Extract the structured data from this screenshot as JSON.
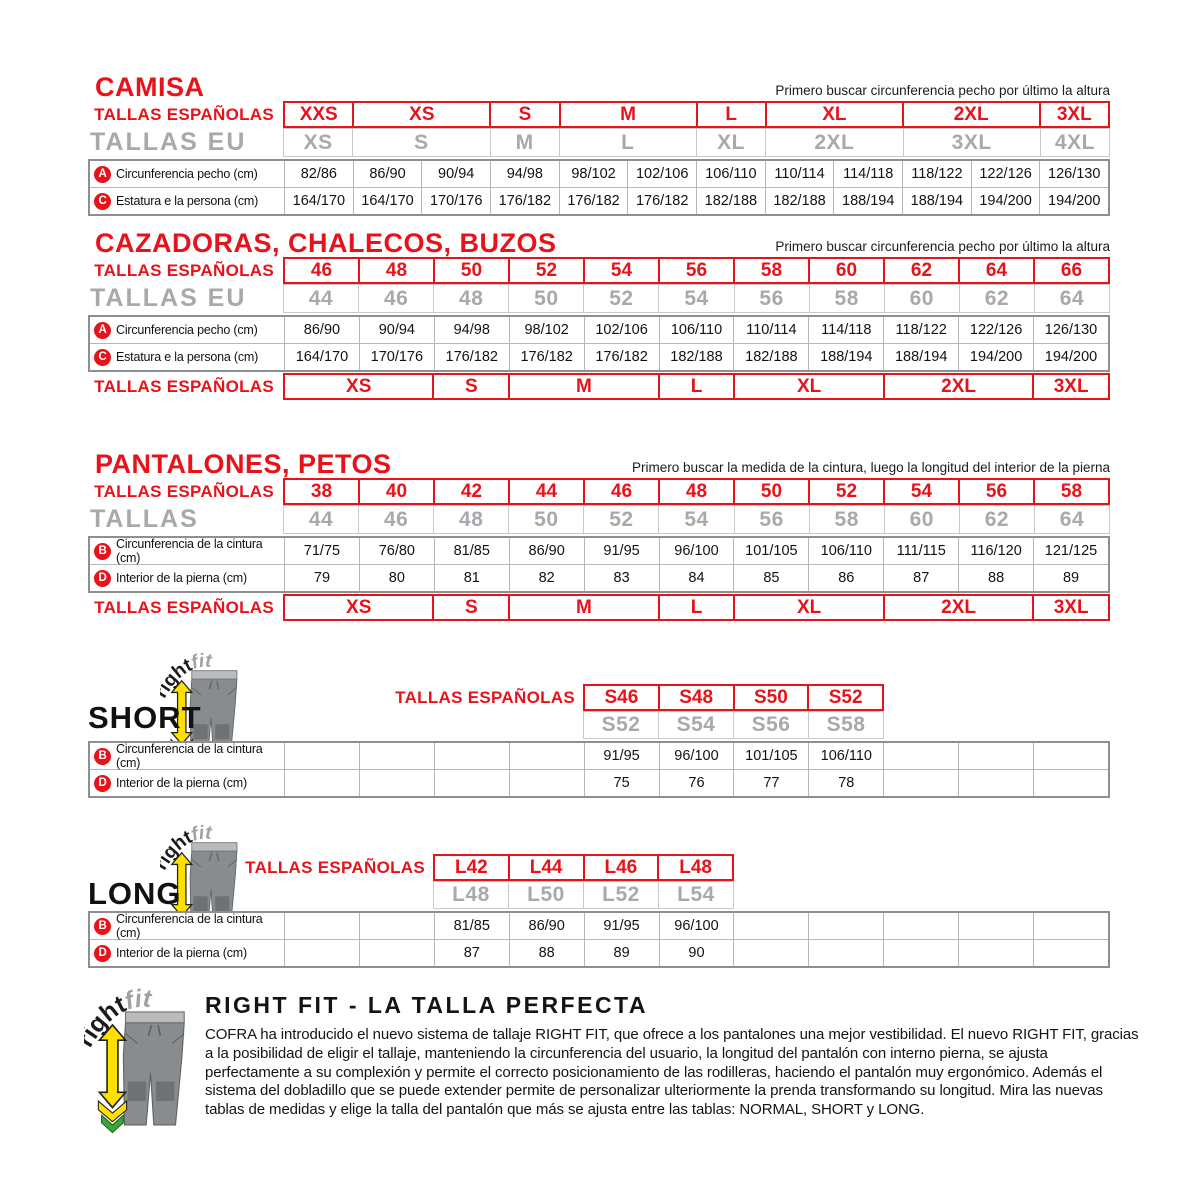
{
  "colors": {
    "red": "#e8121a",
    "gray_text": "#a7a9ac",
    "yellow_arrow": "#ffe000",
    "green_arrow": "#3da639",
    "pants_gray": "#898c8e"
  },
  "camisa": {
    "title": "CAMISA",
    "note": "Primero buscar circunferencia pecho por último la altura",
    "es_label": "TALLAS ESPAÑOLAS",
    "eu_label": "TALLAS EU",
    "es_sizes": [
      {
        "label": "XXS",
        "span": 1
      },
      {
        "label": "XS",
        "span": 2
      },
      {
        "label": "S",
        "span": 1
      },
      {
        "label": "M",
        "span": 2
      },
      {
        "label": "L",
        "span": 1
      },
      {
        "label": "XL",
        "span": 2
      },
      {
        "label": "2XL",
        "span": 2
      },
      {
        "label": "3XL",
        "span": 1
      }
    ],
    "eu_sizes": [
      {
        "label": "XS",
        "span": 1
      },
      {
        "label": "S",
        "span": 2
      },
      {
        "label": "M",
        "span": 1
      },
      {
        "label": "L",
        "span": 2
      },
      {
        "label": "XL",
        "span": 1
      },
      {
        "label": "2XL",
        "span": 2
      },
      {
        "label": "3XL",
        "span": 2
      },
      {
        "label": "4XL",
        "span": 1
      }
    ],
    "rows": [
      {
        "letter": "A",
        "label": "Circunferencia pecho (cm)",
        "values": [
          "82/86",
          "86/90",
          "90/94",
          "94/98",
          "98/102",
          "102/106",
          "106/110",
          "110/114",
          "114/118",
          "118/122",
          "122/126",
          "126/130"
        ]
      },
      {
        "letter": "C",
        "label": "Estatura e la persona (cm)",
        "values": [
          "164/170",
          "164/170",
          "170/176",
          "176/182",
          "176/182",
          "176/182",
          "182/188",
          "182/188",
          "188/194",
          "188/194",
          "194/200",
          "194/200"
        ]
      }
    ]
  },
  "cazadoras": {
    "title": "CAZADORAS, CHALECOS, BUZOS",
    "note": "Primero buscar circunferencia pecho por último la altura",
    "es_label": "TALLAS ESPAÑOLAS",
    "eu_label": "TALLAS EU",
    "es_sizes": [
      "46",
      "48",
      "50",
      "52",
      "54",
      "56",
      "58",
      "60",
      "62",
      "64",
      "66"
    ],
    "eu_sizes": [
      "44",
      "46",
      "48",
      "50",
      "52",
      "54",
      "56",
      "58",
      "60",
      "62",
      "64"
    ],
    "rows": [
      {
        "letter": "A",
        "label": "Circunferencia pecho (cm)",
        "values": [
          "86/90",
          "90/94",
          "94/98",
          "98/102",
          "102/106",
          "106/110",
          "110/114",
          "114/118",
          "118/122",
          "122/126",
          "126/130"
        ]
      },
      {
        "letter": "C",
        "label": "Estatura e la persona (cm)",
        "values": [
          "164/170",
          "170/176",
          "176/182",
          "176/182",
          "176/182",
          "182/188",
          "182/188",
          "188/194",
          "188/194",
          "194/200",
          "194/200"
        ]
      }
    ],
    "bottom_label": "TALLAS ESPAÑOLAS",
    "bottom_sizes": [
      {
        "label": "XS",
        "span": 2
      },
      {
        "label": "S",
        "span": 1
      },
      {
        "label": "M",
        "span": 2
      },
      {
        "label": "L",
        "span": 1
      },
      {
        "label": "XL",
        "span": 2
      },
      {
        "label": "2XL",
        "span": 2
      },
      {
        "label": "3XL",
        "span": 1
      }
    ]
  },
  "pantalones": {
    "title": "PANTALONES, PETOS",
    "note": "Primero buscar la medida de la cintura, luego la longitud del interior de la pierna",
    "es_label": "TALLAS ESPAÑOLAS",
    "eu_label": "TALLAS",
    "es_sizes": [
      "38",
      "40",
      "42",
      "44",
      "46",
      "48",
      "50",
      "52",
      "54",
      "56",
      "58"
    ],
    "eu_sizes": [
      "44",
      "46",
      "48",
      "50",
      "52",
      "54",
      "56",
      "58",
      "60",
      "62",
      "64"
    ],
    "rows": [
      {
        "letter": "B",
        "label": "Circunferencia de la cintura (cm)",
        "values": [
          "71/75",
          "76/80",
          "81/85",
          "86/90",
          "91/95",
          "96/100",
          "101/105",
          "106/110",
          "111/115",
          "116/120",
          "121/125"
        ]
      },
      {
        "letter": "D",
        "label": "Interior de la pierna (cm)",
        "values": [
          "79",
          "80",
          "81",
          "82",
          "83",
          "84",
          "85",
          "86",
          "87",
          "88",
          "89"
        ]
      }
    ],
    "bottom_label": "TALLAS ESPAÑOLAS",
    "bottom_sizes": [
      {
        "label": "XS",
        "span": 2
      },
      {
        "label": "S",
        "span": 1
      },
      {
        "label": "M",
        "span": 2
      },
      {
        "label": "L",
        "span": 1
      },
      {
        "label": "XL",
        "span": 2
      },
      {
        "label": "2XL",
        "span": 2
      },
      {
        "label": "3XL",
        "span": 1
      }
    ]
  },
  "short": {
    "name": "SHORT",
    "es_label": "TALLAS ESPAÑOLAS",
    "es_sizes": [
      "S46",
      "S48",
      "S50",
      "S52"
    ],
    "eu_sizes": [
      "S52",
      "S54",
      "S56",
      "S58"
    ],
    "rows": [
      {
        "letter": "B",
        "label": "Circunferencia de la cintura (cm)",
        "values": [
          "",
          "",
          "",
          "",
          "91/95",
          "96/100",
          "101/105",
          "106/110",
          "",
          "",
          ""
        ]
      },
      {
        "letter": "D",
        "label": "Interior de la pierna (cm)",
        "values": [
          "",
          "",
          "",
          "",
          "75",
          "76",
          "77",
          "78",
          "",
          "",
          ""
        ]
      }
    ]
  },
  "long": {
    "name": "LONG",
    "es_label": "TALLAS ESPAÑOLAS",
    "es_sizes": [
      "L42",
      "L44",
      "L46",
      "L48"
    ],
    "eu_sizes": [
      "L48",
      "L50",
      "L52",
      "L54"
    ],
    "rows": [
      {
        "letter": "B",
        "label": "Circunferencia de la cintura (cm)",
        "values": [
          "",
          "",
          "81/85",
          "86/90",
          "91/95",
          "96/100",
          "",
          "",
          "",
          "",
          ""
        ]
      },
      {
        "letter": "D",
        "label": "Interior de la pierna (cm)",
        "values": [
          "",
          "",
          "87",
          "88",
          "89",
          "90",
          "",
          "",
          "",
          "",
          ""
        ]
      }
    ]
  },
  "rightfit": {
    "brand_right": "right",
    "brand_fit": "fit",
    "title": "RIGHT FIT - LA TALLA PERFECTA",
    "paragraph": "COFRA ha introducido el nuevo sistema de tallaje RIGHT FIT, que ofrece a los pantalones una mejor vestibilidad. El nuevo RIGHT FIT, gracias a la posibilidad de eligir el tallaje, manteniendo la circunferencia del usuario, la longitud del pantalón con interno pierna, se ajusta perfectamente a su complexión y permite el correcto posicionamiento de las rodilleras, haciendo el pantalón muy ergonómico. Además el sistema del dobladillo que se puede extender permite de personalizar ulteriormente la prenda transformando su longitud. Mira las nuevas tablas de medidas y elige la talla del pantalón que más se ajusta entre las tablas: NORMAL, SHORT y LONG."
  }
}
